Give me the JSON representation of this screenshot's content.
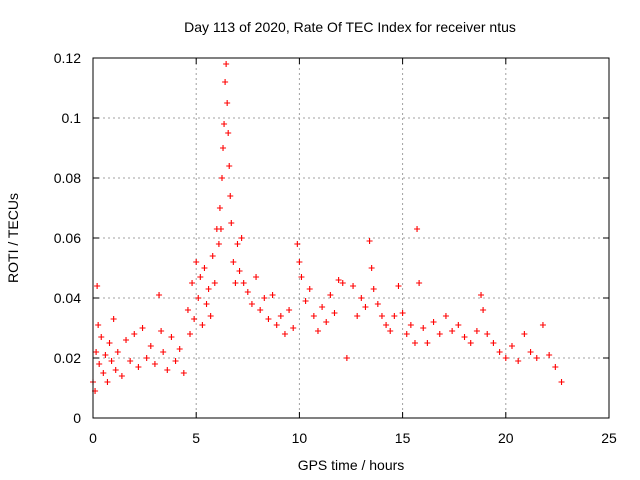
{
  "chart_data": {
    "type": "scatter",
    "title": "Day 113 of 2020, Rate Of TEC Index for receiver ntus",
    "xlabel": "GPS time / hours",
    "ylabel": "ROTI / TECUs",
    "xlim": [
      0,
      25
    ],
    "ylim": [
      0,
      0.12
    ],
    "xticks": [
      "0",
      "5",
      "10",
      "15",
      "20",
      "25"
    ],
    "xtick_values": [
      0,
      5,
      10,
      15,
      20,
      25
    ],
    "yticks": [
      "0",
      "0.02",
      "0.04",
      "0.06",
      "0.08",
      "0.1",
      "0.12"
    ],
    "ytick_values": [
      0,
      0.02,
      0.04,
      0.06,
      0.08,
      0.1,
      0.12
    ],
    "grid": true,
    "marker": "+",
    "color": "#ff0000",
    "series": [
      {
        "name": "ROTI",
        "points": [
          [
            0.0,
            0.012
          ],
          [
            0.1,
            0.009
          ],
          [
            0.15,
            0.022
          ],
          [
            0.2,
            0.044
          ],
          [
            0.25,
            0.031
          ],
          [
            0.3,
            0.018
          ],
          [
            0.4,
            0.027
          ],
          [
            0.5,
            0.015
          ],
          [
            0.6,
            0.021
          ],
          [
            0.7,
            0.012
          ],
          [
            0.8,
            0.025
          ],
          [
            0.9,
            0.019
          ],
          [
            1.0,
            0.033
          ],
          [
            1.1,
            0.016
          ],
          [
            1.2,
            0.022
          ],
          [
            1.4,
            0.014
          ],
          [
            1.6,
            0.026
          ],
          [
            1.8,
            0.019
          ],
          [
            2.0,
            0.028
          ],
          [
            2.2,
            0.017
          ],
          [
            2.4,
            0.03
          ],
          [
            2.6,
            0.02
          ],
          [
            2.8,
            0.024
          ],
          [
            3.0,
            0.018
          ],
          [
            3.2,
            0.041
          ],
          [
            3.3,
            0.029
          ],
          [
            3.4,
            0.022
          ],
          [
            3.6,
            0.016
          ],
          [
            3.8,
            0.027
          ],
          [
            4.0,
            0.019
          ],
          [
            4.2,
            0.023
          ],
          [
            4.4,
            0.015
          ],
          [
            4.6,
            0.036
          ],
          [
            4.7,
            0.028
          ],
          [
            4.8,
            0.045
          ],
          [
            4.9,
            0.033
          ],
          [
            5.0,
            0.052
          ],
          [
            5.1,
            0.04
          ],
          [
            5.2,
            0.047
          ],
          [
            5.3,
            0.031
          ],
          [
            5.4,
            0.05
          ],
          [
            5.5,
            0.038
          ],
          [
            5.6,
            0.043
          ],
          [
            5.7,
            0.034
          ],
          [
            5.8,
            0.054
          ],
          [
            5.9,
            0.045
          ],
          [
            6.0,
            0.063
          ],
          [
            6.1,
            0.058
          ],
          [
            6.15,
            0.07
          ],
          [
            6.2,
            0.063
          ],
          [
            6.25,
            0.08
          ],
          [
            6.3,
            0.09
          ],
          [
            6.35,
            0.098
          ],
          [
            6.4,
            0.112
          ],
          [
            6.45,
            0.118
          ],
          [
            6.5,
            0.105
          ],
          [
            6.55,
            0.095
          ],
          [
            6.6,
            0.084
          ],
          [
            6.65,
            0.074
          ],
          [
            6.7,
            0.065
          ],
          [
            6.8,
            0.052
          ],
          [
            6.9,
            0.045
          ],
          [
            7.0,
            0.058
          ],
          [
            7.1,
            0.049
          ],
          [
            7.2,
            0.06
          ],
          [
            7.3,
            0.045
          ],
          [
            7.5,
            0.042
          ],
          [
            7.7,
            0.038
          ],
          [
            7.9,
            0.047
          ],
          [
            8.1,
            0.036
          ],
          [
            8.3,
            0.04
          ],
          [
            8.5,
            0.033
          ],
          [
            8.7,
            0.041
          ],
          [
            8.9,
            0.031
          ],
          [
            9.1,
            0.034
          ],
          [
            9.3,
            0.028
          ],
          [
            9.5,
            0.036
          ],
          [
            9.7,
            0.03
          ],
          [
            9.9,
            0.058
          ],
          [
            10.0,
            0.052
          ],
          [
            10.1,
            0.047
          ],
          [
            10.3,
            0.039
          ],
          [
            10.5,
            0.043
          ],
          [
            10.7,
            0.034
          ],
          [
            10.9,
            0.029
          ],
          [
            11.1,
            0.037
          ],
          [
            11.3,
            0.032
          ],
          [
            11.5,
            0.041
          ],
          [
            11.7,
            0.035
          ],
          [
            11.9,
            0.046
          ],
          [
            12.1,
            0.045
          ],
          [
            12.3,
            0.02
          ],
          [
            12.6,
            0.044
          ],
          [
            12.8,
            0.034
          ],
          [
            13.0,
            0.04
          ],
          [
            13.2,
            0.037
          ],
          [
            13.4,
            0.059
          ],
          [
            13.5,
            0.05
          ],
          [
            13.6,
            0.043
          ],
          [
            13.8,
            0.038
          ],
          [
            14.0,
            0.034
          ],
          [
            14.2,
            0.031
          ],
          [
            14.4,
            0.029
          ],
          [
            14.6,
            0.034
          ],
          [
            14.8,
            0.044
          ],
          [
            15.0,
            0.035
          ],
          [
            15.2,
            0.028
          ],
          [
            15.4,
            0.031
          ],
          [
            15.6,
            0.025
          ],
          [
            15.7,
            0.063
          ],
          [
            15.8,
            0.045
          ],
          [
            16.0,
            0.03
          ],
          [
            16.2,
            0.025
          ],
          [
            16.5,
            0.032
          ],
          [
            16.8,
            0.028
          ],
          [
            17.1,
            0.034
          ],
          [
            17.4,
            0.029
          ],
          [
            17.7,
            0.031
          ],
          [
            18.0,
            0.027
          ],
          [
            18.3,
            0.025
          ],
          [
            18.6,
            0.029
          ],
          [
            18.8,
            0.041
          ],
          [
            18.9,
            0.036
          ],
          [
            19.1,
            0.028
          ],
          [
            19.4,
            0.025
          ],
          [
            19.7,
            0.022
          ],
          [
            20.0,
            0.02
          ],
          [
            20.3,
            0.024
          ],
          [
            20.6,
            0.019
          ],
          [
            20.9,
            0.028
          ],
          [
            21.2,
            0.022
          ],
          [
            21.5,
            0.02
          ],
          [
            21.8,
            0.031
          ],
          [
            22.1,
            0.021
          ],
          [
            22.4,
            0.017
          ],
          [
            22.7,
            0.012
          ]
        ]
      }
    ]
  }
}
